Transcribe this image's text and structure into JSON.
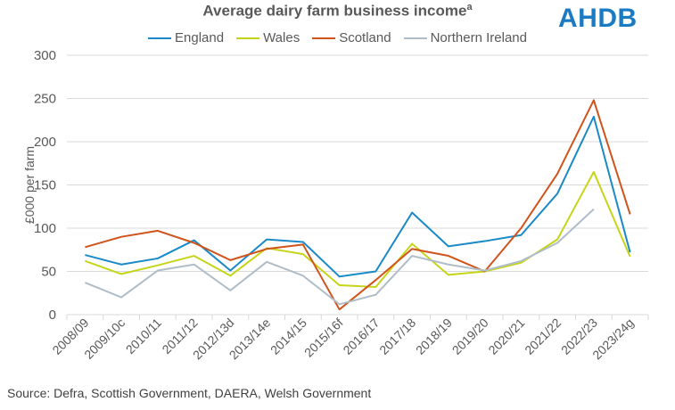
{
  "chart_data": {
    "type": "line",
    "title": "Average dairy farm business income",
    "title_superscript": "a",
    "ylabel": "£000 per farm",
    "ylim": [
      0,
      300
    ],
    "yticks": [
      0,
      50,
      100,
      150,
      200,
      250,
      300
    ],
    "grid": true,
    "legend": "top",
    "categories": [
      "2008/09",
      "2009/10c",
      "2010/11",
      "2011/12",
      "2012/13d",
      "2013/14e",
      "2014/15",
      "2015/16f",
      "2016/17",
      "2017/18",
      "2018/19",
      "2019/20",
      "2020/21",
      "2021/22",
      "2022/23",
      "2023/24g"
    ],
    "series": [
      {
        "name": "England",
        "color": "#1a8ac6",
        "values": [
          69,
          58,
          65,
          86,
          51,
          87,
          84,
          44,
          50,
          118,
          79,
          85,
          92,
          140,
          229,
          72
        ]
      },
      {
        "name": "Wales",
        "color": "#c6d419",
        "values": [
          62,
          47,
          57,
          68,
          45,
          77,
          70,
          34,
          32,
          82,
          46,
          50,
          60,
          87,
          165,
          67
        ]
      },
      {
        "name": "Scotland",
        "color": "#d0531b",
        "values": [
          78,
          90,
          97,
          83,
          63,
          76,
          81,
          6,
          40,
          76,
          68,
          50,
          100,
          163,
          248,
          116
        ]
      },
      {
        "name": "Northern Ireland",
        "color": "#aebdc8",
        "values": [
          37,
          20,
          51,
          58,
          28,
          61,
          45,
          12,
          23,
          68,
          58,
          51,
          62,
          83,
          122,
          null
        ]
      }
    ]
  },
  "logo": "AHDB",
  "source": "Source: Defra, Scottish Government, DAERA, Welsh Government"
}
